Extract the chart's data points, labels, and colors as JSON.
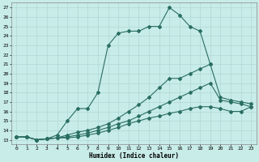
{
  "xlabel": "Humidex (Indice chaleur)",
  "bg_color": "#c8ece8",
  "grid_color": "#b0d8d4",
  "line_color": "#2a6e62",
  "xlim": [
    -0.5,
    23.5
  ],
  "ylim": [
    12.5,
    27.5
  ],
  "xticks": [
    0,
    1,
    2,
    3,
    4,
    5,
    6,
    7,
    8,
    9,
    10,
    11,
    12,
    13,
    14,
    15,
    16,
    17,
    18,
    19,
    20,
    21,
    22,
    23
  ],
  "yticks": [
    13,
    14,
    15,
    16,
    17,
    18,
    19,
    20,
    21,
    22,
    23,
    24,
    25,
    26,
    27
  ],
  "line1_x": [
    0,
    1,
    2,
    3,
    4,
    5,
    6,
    7,
    8,
    9,
    10,
    11,
    12,
    13,
    14,
    15,
    16,
    17,
    18,
    19
  ],
  "line1_y": [
    13.3,
    13.3,
    13.0,
    13.1,
    13.5,
    15.0,
    16.3,
    16.3,
    18.0,
    23.0,
    24.3,
    24.5,
    24.5,
    25.0,
    25.0,
    27.0,
    26.2,
    25.0,
    24.5,
    21.0
  ],
  "line2_x": [
    0,
    1,
    2,
    3,
    4,
    5,
    6,
    7,
    8,
    9,
    10,
    11,
    12,
    13,
    14,
    15,
    16,
    17,
    18,
    19,
    20,
    21,
    22,
    23
  ],
  "line2_y": [
    13.3,
    13.3,
    13.0,
    13.1,
    13.2,
    13.5,
    13.8,
    14.0,
    14.3,
    14.7,
    15.3,
    16.0,
    16.7,
    17.5,
    18.5,
    19.5,
    19.5,
    20.0,
    20.5,
    21.0,
    17.5,
    17.2,
    17.0,
    16.8
  ],
  "line3_x": [
    0,
    1,
    2,
    3,
    4,
    5,
    6,
    7,
    8,
    9,
    10,
    11,
    12,
    13,
    14,
    15,
    16,
    17,
    18,
    19,
    20,
    21,
    22,
    23
  ],
  "line3_y": [
    13.3,
    13.3,
    13.0,
    13.1,
    13.2,
    13.3,
    13.5,
    13.7,
    14.0,
    14.3,
    14.7,
    15.0,
    15.5,
    16.0,
    16.5,
    17.0,
    17.5,
    18.0,
    18.5,
    19.0,
    17.2,
    17.0,
    16.8,
    16.5
  ],
  "line4_x": [
    0,
    1,
    2,
    3,
    4,
    5,
    6,
    7,
    8,
    9,
    10,
    11,
    12,
    13,
    14,
    15,
    16,
    17,
    18,
    19,
    20,
    21,
    22,
    23
  ],
  "line4_y": [
    13.3,
    13.3,
    13.0,
    13.1,
    13.2,
    13.2,
    13.3,
    13.5,
    13.7,
    14.0,
    14.3,
    14.7,
    15.0,
    15.3,
    15.5,
    15.8,
    16.0,
    16.3,
    16.5,
    16.5,
    16.3,
    16.0,
    16.0,
    16.5
  ]
}
